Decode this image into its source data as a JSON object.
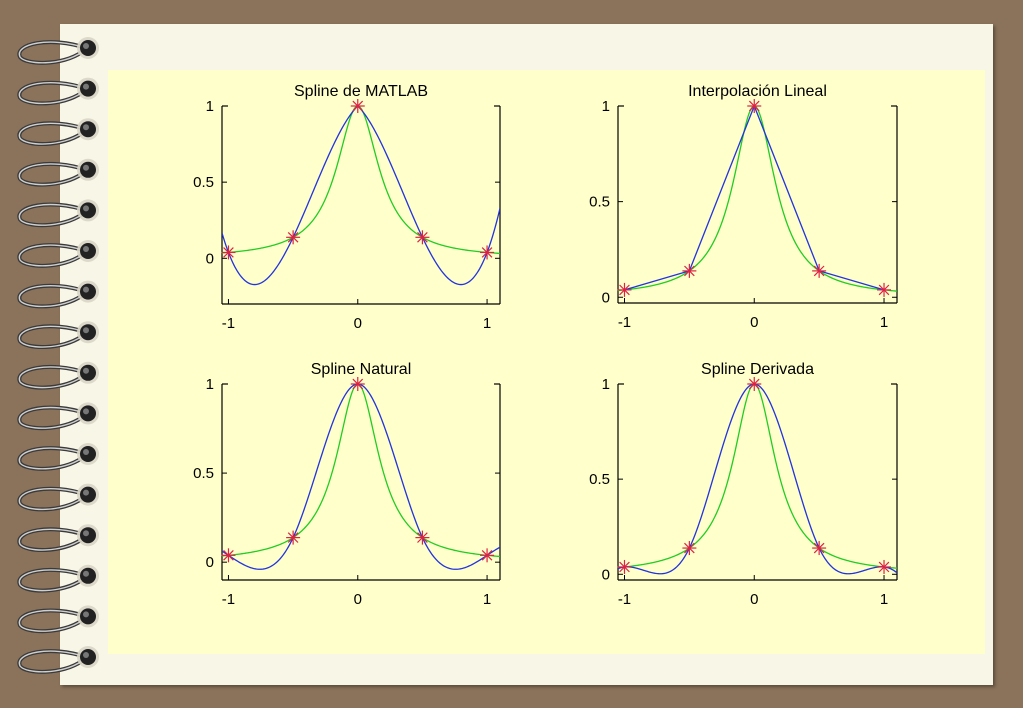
{
  "colors": {
    "frame": "#8B735B",
    "page": "#F8F6E6",
    "panel": "#FFFFCC",
    "spline_series": "#2233DD",
    "runge_series": "#22CC22",
    "markers": "#DD2244"
  },
  "rings": {
    "count": 16
  },
  "chart_data": [
    {
      "type": "line",
      "title": "Spline de MATLAB",
      "method": "not-a-knot",
      "xlim": [
        -1.05,
        1.1
      ],
      "ylim": [
        -0.3,
        1.0
      ],
      "xticks": [
        {
          "v": -1,
          "label": "-1"
        },
        {
          "v": 0,
          "label": "0"
        },
        {
          "v": 1,
          "label": "1"
        }
      ],
      "yticks": [
        {
          "v": 0,
          "label": "0"
        },
        {
          "v": 0.5,
          "label": "0.5"
        },
        {
          "v": 1,
          "label": "1"
        }
      ],
      "nodes": {
        "x": [
          -1,
          -0.5,
          0,
          0.5,
          1
        ],
        "y": [
          0.0385,
          0.1379,
          1,
          0.1379,
          0.0385
        ]
      }
    },
    {
      "type": "line",
      "title": "Interpolación Lineal",
      "method": "linear",
      "xlim": [
        -1.05,
        1.1
      ],
      "ylim": [
        -0.03,
        1.0
      ],
      "xticks": [
        {
          "v": -1,
          "label": "-1"
        },
        {
          "v": 0,
          "label": "0"
        },
        {
          "v": 1,
          "label": "1"
        }
      ],
      "yticks": [
        {
          "v": 0,
          "label": "0"
        },
        {
          "v": 0.5,
          "label": "0.5"
        },
        {
          "v": 1,
          "label": "1"
        }
      ],
      "nodes": {
        "x": [
          -1,
          -0.5,
          0,
          0.5,
          1
        ],
        "y": [
          0.0385,
          0.1379,
          1,
          0.1379,
          0.0385
        ]
      }
    },
    {
      "type": "line",
      "title": "Spline Natural",
      "method": "natural",
      "xlim": [
        -1.05,
        1.1
      ],
      "ylim": [
        -0.1,
        1.0
      ],
      "xticks": [
        {
          "v": -1,
          "label": "-1"
        },
        {
          "v": 0,
          "label": "0"
        },
        {
          "v": 1,
          "label": "1"
        }
      ],
      "yticks": [
        {
          "v": 0,
          "label": "0"
        },
        {
          "v": 0.5,
          "label": "0.5"
        },
        {
          "v": 1,
          "label": "1"
        }
      ],
      "nodes": {
        "x": [
          -1,
          -0.5,
          0,
          0.5,
          1
        ],
        "y": [
          0.0385,
          0.1379,
          1,
          0.1379,
          0.0385
        ]
      }
    },
    {
      "type": "line",
      "title": "Spline Derivada",
      "method": "clamped",
      "endslopes": [
        0.074,
        -0.074
      ],
      "xlim": [
        -1.05,
        1.1
      ],
      "ylim": [
        -0.03,
        1.0
      ],
      "xticks": [
        {
          "v": -1,
          "label": "-1"
        },
        {
          "v": 0,
          "label": "0"
        },
        {
          "v": 1,
          "label": "1"
        }
      ],
      "yticks": [
        {
          "v": 0,
          "label": "0"
        },
        {
          "v": 0.5,
          "label": "0.5"
        },
        {
          "v": 1,
          "label": "1"
        }
      ],
      "nodes": {
        "x": [
          -1,
          -0.5,
          0,
          0.5,
          1
        ],
        "y": [
          0.0385,
          0.1379,
          1,
          0.1379,
          0.0385
        ]
      }
    }
  ]
}
